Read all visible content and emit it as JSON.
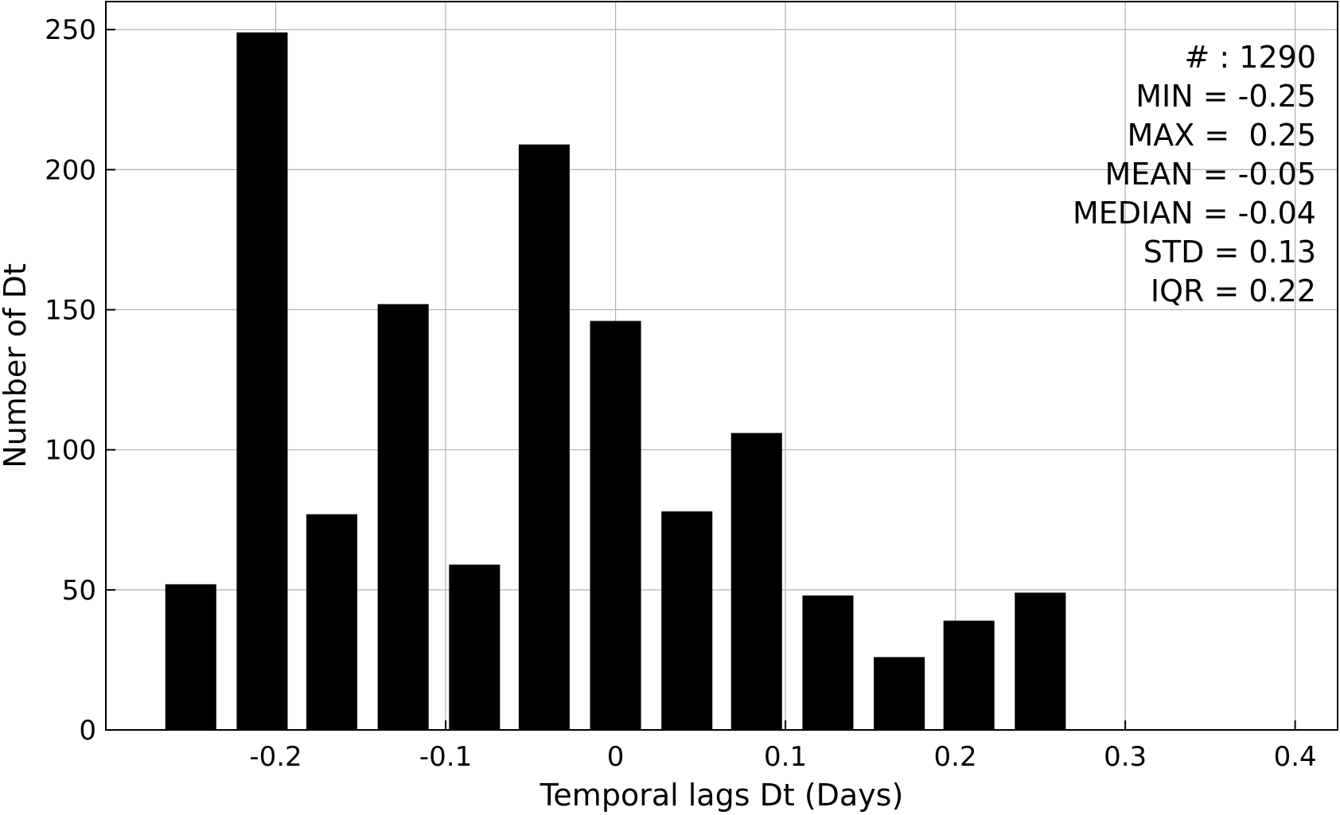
{
  "chart_data": {
    "type": "bar",
    "xlabel": "Temporal lags Dt (Days)",
    "ylabel": "Number of Dt",
    "xlim": [
      -0.3,
      0.425
    ],
    "ylim": [
      0,
      260
    ],
    "x_ticks": [
      -0.2,
      -0.1,
      0,
      0.1,
      0.2,
      0.3,
      0.4
    ],
    "x_tick_labels": [
      "-0.2",
      "-0.1",
      "0",
      "0.1",
      "0.2",
      "0.3",
      "0.4"
    ],
    "y_ticks": [
      0,
      50,
      100,
      150,
      200,
      250
    ],
    "y_tick_labels": [
      "0",
      "50",
      "100",
      "150",
      "200",
      "250"
    ],
    "grid": true,
    "bar_width": 0.03,
    "x": [
      -0.25,
      -0.208,
      -0.167,
      -0.125,
      -0.083,
      -0.042,
      0.0,
      0.042,
      0.083,
      0.125,
      0.167,
      0.208,
      0.25
    ],
    "values": [
      52,
      249,
      77,
      152,
      59,
      209,
      146,
      78,
      106,
      48,
      26,
      39,
      49
    ],
    "annotation_lines": [
      "# : 1290",
      "MIN = -0.25",
      "MAX =  0.25",
      "MEAN = -0.05",
      "MEDIAN = -0.04",
      "STD = 0.13",
      "IQR = 0.22"
    ],
    "annotation_placement": "top-right"
  }
}
